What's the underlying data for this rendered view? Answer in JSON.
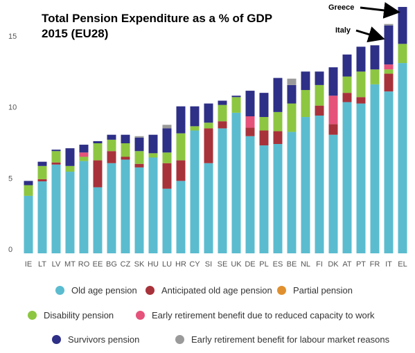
{
  "chart_data": {
    "type": "bar",
    "stacked": true,
    "title": "Total Pension Expenditure as a % of GDP 2015 (EU28)",
    "categories": [
      "IE",
      "LT",
      "LV",
      "MT",
      "RO",
      "EE",
      "BG",
      "CZ",
      "SK",
      "HU",
      "LU",
      "HR",
      "CY",
      "SI",
      "SE",
      "UK",
      "DE",
      "PL",
      "ES",
      "BE",
      "NL",
      "FI",
      "DK",
      "AT",
      "PT",
      "FR",
      "IT",
      "EL"
    ],
    "series": [
      {
        "name": "Old age pension",
        "color": "#5bbccf",
        "values": [
          4.05,
          5.07,
          6.25,
          5.75,
          6.5,
          4.65,
          6.35,
          6.6,
          6.05,
          6.75,
          4.55,
          5.1,
          8.65,
          6.35,
          8.8,
          9.9,
          8.25,
          7.6,
          7.7,
          8.55,
          9.6,
          9.7,
          8.35,
          10.65,
          10.55,
          11.9,
          11.4,
          13.4
        ]
      },
      {
        "name": "Anticipated old age pension",
        "color": "#a8323a",
        "values": [
          0,
          0.15,
          0.15,
          0,
          0,
          1.9,
          0.85,
          0.2,
          0.25,
          0,
          1.8,
          1.45,
          0,
          2.45,
          0.5,
          0,
          0.6,
          1.05,
          0.9,
          0,
          0,
          0.7,
          0.75,
          0.65,
          0.45,
          0,
          1.25,
          0
        ]
      },
      {
        "name": "Partial pension",
        "color": "#e0902e",
        "values": [
          0,
          0,
          0,
          0,
          0,
          0,
          0,
          0,
          0,
          0,
          0,
          0,
          0,
          0,
          0,
          0,
          0,
          0,
          0,
          0,
          0,
          0,
          0,
          0,
          0,
          0,
          0,
          0
        ]
      },
      {
        "name": "Disability pension",
        "color": "#8dc641",
        "values": [
          0.75,
          0.93,
          0.8,
          0.4,
          0.3,
          1.2,
          0.8,
          0.95,
          0.9,
          0.3,
          0.75,
          1.9,
          0.3,
          0.4,
          1.15,
          1.1,
          0,
          0.95,
          1.35,
          2.0,
          1.9,
          1.45,
          0,
          1.15,
          1.8,
          1.05,
          0.3,
          1.35
        ]
      },
      {
        "name": "Early retirement benefit due to reduced capacity to work",
        "color": "#e5527a",
        "values": [
          0,
          0,
          0,
          0,
          0.3,
          0,
          0,
          0,
          0,
          0,
          0,
          0,
          0,
          0,
          0,
          0,
          0.8,
          0,
          0,
          0,
          0,
          0,
          2.0,
          0,
          0,
          0,
          0.35,
          0
        ]
      },
      {
        "name": "Survivors pension",
        "color": "#2e2f86",
        "values": [
          0.3,
          0.3,
          0.1,
          1.25,
          0.55,
          0.15,
          0.35,
          0.6,
          0.95,
          1.3,
          1.7,
          1.9,
          1.4,
          1.35,
          0.3,
          0.1,
          1.8,
          1.7,
          2.4,
          1.3,
          1.3,
          0.95,
          2.0,
          1.55,
          1.75,
          1.7,
          2.75,
          2.6
        ]
      },
      {
        "name": "Early retirement benefit for labour market reasons",
        "color": "#9a9a9a",
        "values": [
          0,
          0,
          0,
          0,
          0,
          0,
          0,
          0,
          0.1,
          0,
          0.25,
          0,
          0,
          0,
          0,
          0,
          0,
          0,
          0,
          0.45,
          0,
          0,
          0,
          0,
          0,
          0,
          0.1,
          0
        ]
      }
    ],
    "ylim": [
      0,
      17.4
    ],
    "yticks": [
      0,
      5,
      10,
      15
    ],
    "annotations": [
      "Greece",
      "Italy"
    ]
  }
}
